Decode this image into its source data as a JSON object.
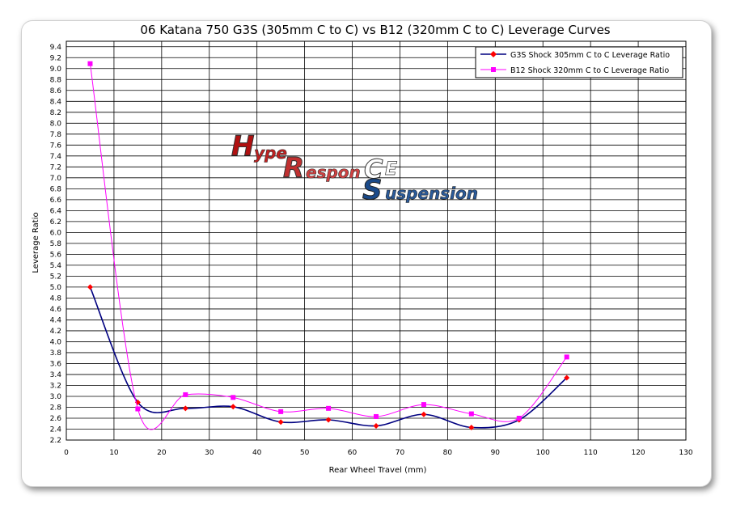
{
  "chart_data": {
    "type": "line",
    "title": "06 Katana 750 G3S (305mm C to C) vs B12 (320mm C to C) Leverage Curves",
    "xlabel": "Rear Wheel Travel (mm)",
    "ylabel": "Leverage Ratio",
    "xlim": [
      0,
      130
    ],
    "ylim": [
      2.2,
      9.5
    ],
    "x_ticks": [
      "0",
      "10",
      "20",
      "30",
      "40",
      "50",
      "60",
      "70",
      "80",
      "90",
      "100",
      "110",
      "120",
      "130"
    ],
    "y_ticks": [
      "2.2",
      "2.4",
      "2.6",
      "2.8",
      "3.0",
      "3.2",
      "3.4",
      "3.6",
      "3.8",
      "4.0",
      "4.2",
      "4.4",
      "4.6",
      "4.8",
      "5.0",
      "5.2",
      "5.4",
      "5.6",
      "5.8",
      "6.0",
      "6.2",
      "6.4",
      "6.6",
      "6.8",
      "7.0",
      "7.2",
      "7.4",
      "7.6",
      "7.8",
      "8.0",
      "8.2",
      "8.4",
      "8.6",
      "8.8",
      "9.0",
      "9.2",
      "9.4"
    ],
    "grid": true,
    "legend": "top-right",
    "series": [
      {
        "name": "G3S Shock 305mm C to C Leverage Ratio",
        "color": "#000080",
        "marker_color": "#ff0000",
        "marker": "diamond",
        "x": [
          5,
          15,
          25,
          35,
          45,
          55,
          65,
          75,
          85,
          95,
          105
        ],
        "y": [
          5.0,
          2.89,
          2.78,
          2.81,
          2.53,
          2.57,
          2.46,
          2.67,
          2.43,
          2.57,
          3.34
        ]
      },
      {
        "name": "B12 Shock 320mm C to C Leverage Ratio",
        "color": "#ff00ff",
        "marker_color": "#ff00ff",
        "marker": "square",
        "x": [
          5,
          15,
          25,
          35,
          45,
          55,
          65,
          75,
          85,
          95,
          105
        ],
        "y": [
          9.09,
          2.77,
          3.03,
          2.98,
          2.72,
          2.78,
          2.63,
          2.85,
          2.68,
          2.6,
          3.72
        ]
      }
    ]
  },
  "watermark": {
    "line1": "HypeR",
    "line2": "Responce",
    "line3": "Suspension"
  }
}
